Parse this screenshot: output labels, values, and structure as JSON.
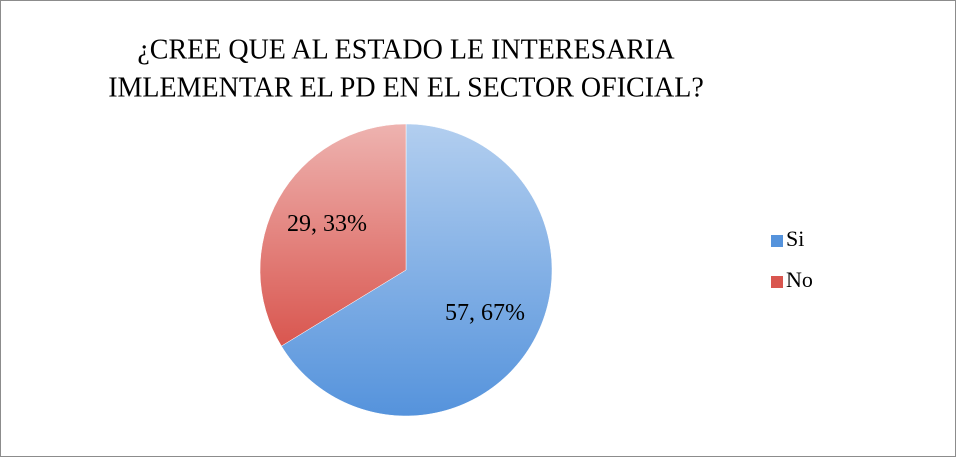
{
  "chart_data": {
    "type": "pie",
    "title": [
      "¿CREE QUE AL ESTADO LE INTERESARIA",
      "IMLEMENTAR EL PD EN EL SECTOR OFICIAL?"
    ],
    "categories": [
      "Si",
      "No"
    ],
    "values": [
      57,
      29
    ],
    "value_labels": [
      "57, 67%",
      "29, 33%"
    ],
    "colors": [
      "#5593dc",
      "#d9564f"
    ],
    "legend": "right"
  }
}
